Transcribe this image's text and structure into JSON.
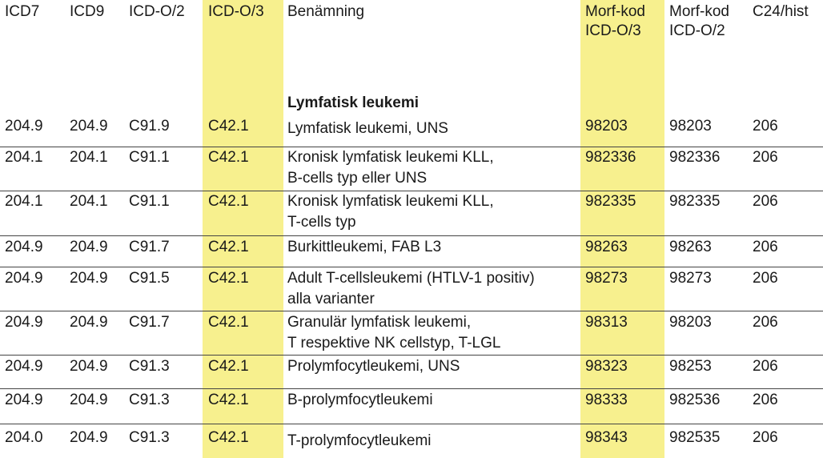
{
  "headers": [
    "ICD7",
    "ICD9",
    "ICD-O/2",
    "ICD-O/3",
    "Benämning",
    "Morf-kod\nICD-O/3",
    "Morf-kod\nICD-O/2",
    "C24/hist"
  ],
  "section_title": "Lymfatisk leukemi",
  "rows": [
    [
      "204.9",
      "204.9",
      "C91.9",
      "C42.1",
      "Lymfatisk leukemi, UNS",
      "98203",
      "98203",
      "206"
    ],
    [
      "204.1",
      "204.1",
      "C91.1",
      "C42.1",
      "Kronisk lymfatisk leukemi KLL,\nB-cells typ eller UNS",
      "982336",
      "982336",
      "206"
    ],
    [
      "204.1",
      "204.1",
      "C91.1",
      "C42.1",
      "Kronisk lymfatisk leukemi KLL,\nT-cells typ",
      "982335",
      "982335",
      "206"
    ],
    [
      "204.9",
      "204.9",
      "C91.7",
      "C42.1",
      "Burkittleukemi, FAB L3",
      "98263",
      "98263",
      "206"
    ],
    [
      "204.9",
      "204.9",
      "C91.5",
      "C42.1",
      "Adult T-cellsleukemi (HTLV-1 positiv)\nalla varianter",
      "98273",
      "98273",
      "206"
    ],
    [
      "204.9",
      "204.9",
      "C91.7",
      "C42.1",
      "Granulär lymfatisk leukemi,\nT respektive NK cellstyp, T-LGL",
      "98313",
      "98203",
      "206"
    ],
    [
      "204.9",
      "204.9",
      "C91.3",
      "C42.1",
      "Prolymfocytleukemi, UNS",
      "98323",
      "98253",
      "206"
    ],
    [
      "204.9",
      "204.9",
      "C91.3",
      "C42.1",
      "B-prolymfocytleukemi",
      "98333",
      "982536",
      "206"
    ],
    [
      "204.0",
      "204.9",
      "C91.3",
      "C42.1",
      "T-prolymfocytleukemi",
      "98343",
      "982535",
      "206"
    ]
  ],
  "highlight_color": "#f7f08e"
}
